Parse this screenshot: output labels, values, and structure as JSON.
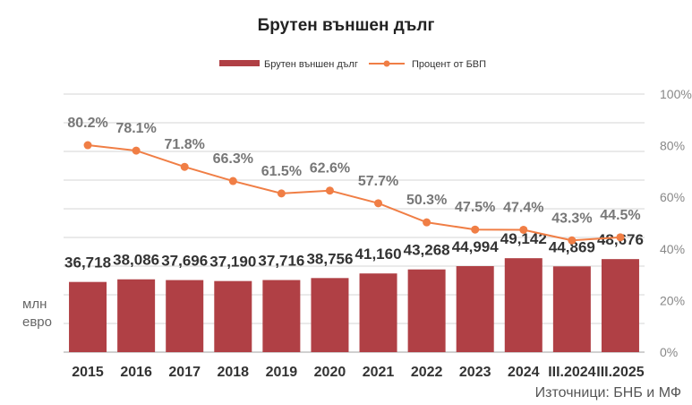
{
  "chart_data": {
    "type": "bar+line",
    "title": "Брутен външен дълг",
    "categories": [
      "2015",
      "2016",
      "2017",
      "2018",
      "2019",
      "2020",
      "2021",
      "2022",
      "2023",
      "2024",
      "III.2024",
      "III.2025"
    ],
    "series": [
      {
        "name": "Брутен външен дълг",
        "type": "bar",
        "axis": "left",
        "color": "#b04045",
        "values": [
          36718,
          38086,
          37696,
          37190,
          37716,
          38756,
          41160,
          43268,
          44994,
          49142,
          44869,
          48676
        ],
        "labels": [
          "36,718",
          "38,086",
          "37,696",
          "37,190",
          "37,716",
          "38,756",
          "41,160",
          "43,268",
          "44,994",
          "49,142",
          "44,869",
          "48,676"
        ]
      },
      {
        "name": "Процент от БВП",
        "type": "line",
        "axis": "right",
        "color": "#f07e45",
        "values": [
          80.2,
          78.1,
          71.8,
          66.3,
          61.5,
          62.6,
          57.7,
          50.3,
          47.5,
          47.4,
          43.3,
          44.5
        ],
        "labels": [
          "80.2%",
          "78.1%",
          "71.8%",
          "66.3%",
          "61.5%",
          "62.6%",
          "57.7%",
          "50.3%",
          "47.5%",
          "47.4%",
          "43.3%",
          "44.5%"
        ]
      }
    ],
    "ylabel": "млн евро",
    "ylim": [
      0,
      135000
    ],
    "y2lim": [
      0,
      100
    ],
    "y2ticks": [
      "0%",
      "20%",
      "40%",
      "60%",
      "80%",
      "100%"
    ],
    "grid": true,
    "legend": "top",
    "source": "Източници: БНБ и МФ"
  }
}
